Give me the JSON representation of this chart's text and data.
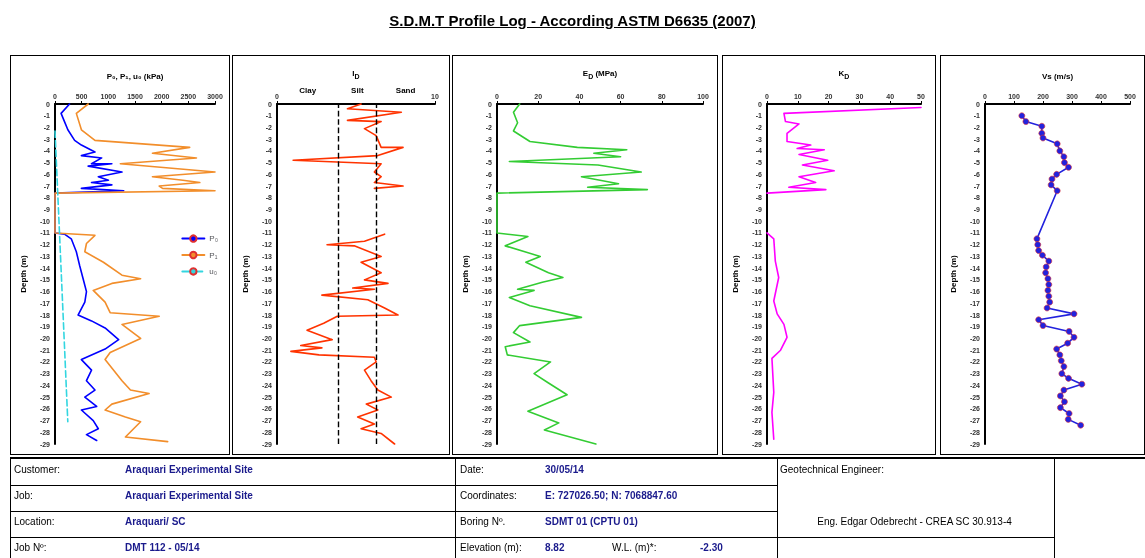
{
  "chart_data": [
    {
      "type": "other",
      "title": "S.D.M.T Profile Log - According ASTM D6635 (2007)",
      "annotations": [
        "Customer:",
        "Araquari Experimental Site",
        "Date:",
        "30/05/14",
        "Geotechnical Engineer:",
        "Job:",
        "Araquari Experimental Site",
        "Coordinates:",
        "E: 727026.50; N: 7068847.60",
        "Location:",
        "Araquari/ SC",
        "Boring Nº.",
        "SDMT 01 (CPTU 01)",
        "Eng. Edgar Odebrecht - CREA SC 30.913-4",
        "Job Nº:",
        "DMT 112 - 05/14",
        "Elevation (m):",
        "8.82",
        "W.L. (m)*:",
        "-2.30"
      ]
    },
    {
      "type": "line",
      "xlabel": "P₀, P₁, u₀ (kPa)",
      "ylabel": "Depth (m)",
      "xlim": [
        0,
        3000
      ],
      "xticks": [
        0,
        500,
        1000,
        1500,
        2000,
        2500,
        3000
      ],
      "ylim": [
        -29,
        0
      ],
      "yticks": [
        0,
        -1,
        -2,
        -3,
        -4,
        -5,
        -6,
        -7,
        -8,
        -9,
        -10,
        -11,
        -12,
        -13,
        -14,
        -15,
        -16,
        -17,
        -18,
        -19,
        -20,
        -21,
        -22,
        -23,
        -24,
        -25,
        -26,
        -27,
        -28,
        -29
      ],
      "grid": false,
      "legend": "right",
      "series": [
        {
          "name": "P₀",
          "color": "#0000ff",
          "x": [
            273,
            114,
            178,
            241,
            368,
            495,
            749,
            495,
            876,
            685,
            1066,
            622,
            1256,
            812,
            1002,
            685,
            1066,
            495,
            1288,
            0,
            0,
            178,
            305,
            400,
            463,
            527,
            590,
            559,
            432,
            685,
            939,
            1193,
            939,
            495,
            685,
            590,
            749,
            559,
            781,
            495,
            717,
            812,
            590,
            781
          ],
          "values": [
            0,
            -0.8,
            -1.5,
            -2.2,
            -3.1,
            -3.5,
            -4.1,
            -4.4,
            -4.6,
            -5.1,
            -5.1,
            -5.3,
            -5.8,
            -6.2,
            -6.5,
            -6.7,
            -6.9,
            -7.2,
            -7.4,
            -7.6,
            -11,
            -11.1,
            -11.5,
            -12.6,
            -13.8,
            -14.9,
            -16,
            -16.9,
            -18,
            -18.5,
            -19.1,
            -20.1,
            -20.9,
            -21.8,
            -22.7,
            -23.6,
            -24.4,
            -25,
            -25.8,
            -26.1,
            -27,
            -27.7,
            -28.2,
            -28.7
          ]
        },
        {
          "name": "P₁",
          "color": "#f28e2b",
          "x": [
            622,
            400,
            495,
            749,
            2525,
            1827,
            2652,
            1225,
            3000,
            1827,
            2398,
            2715,
            1954,
            2017,
            3000,
            0,
            0,
            749,
            590,
            559,
            908,
            1256,
            1605,
            1066,
            717,
            939,
            1034,
            1954,
            1256,
            1605,
            1034,
            939,
            1256,
            1415,
            1764,
            1066,
            939,
            1320,
            1605,
            1320,
            2112
          ],
          "values": [
            0,
            -0.8,
            -2.2,
            -3.1,
            -3.7,
            -4.2,
            -4.6,
            -5.1,
            -5.8,
            -6.2,
            -6.5,
            -6.7,
            -7,
            -7.2,
            -7.4,
            -7.6,
            -11,
            -11.2,
            -11.9,
            -12.6,
            -13.5,
            -14.6,
            -14.9,
            -15.3,
            -15.9,
            -16.9,
            -17.8,
            -18.1,
            -18.8,
            -20,
            -21.2,
            -21.8,
            -23.6,
            -24.4,
            -24.7,
            -25.6,
            -26.1,
            -26.7,
            -27.1,
            -28.4,
            -28.8
          ]
        },
        {
          "name": "u₀",
          "color": "#33d6e0",
          "line_style": "dashed",
          "x": [
            0,
            240
          ],
          "values": [
            -2.3,
            -27.1
          ]
        }
      ]
    },
    {
      "type": "line",
      "xlabel": "I$_{D}$",
      "ylabel": "Depth (m)",
      "log": "x",
      "xlim": [
        0.1,
        10
      ],
      "xticks": [
        {
          "value": 0.1,
          "label": "0"
        },
        10
      ],
      "ylim": [
        -29,
        0
      ],
      "yticks": [
        0,
        -1,
        -2,
        -3,
        -4,
        -5,
        -6,
        -7,
        -8,
        -9,
        -10,
        -11,
        -12,
        -13,
        -14,
        -15,
        -16,
        -17,
        -18,
        -19,
        -20,
        -21,
        -22,
        -23,
        -24,
        -25,
        -26,
        -27,
        -28,
        -29
      ],
      "grid": false,
      "annotations": [
        "Clay",
        "Silt",
        "Sand"
      ],
      "ref_lines": [
        {
          "axis": "x",
          "value": 0.6,
          "color": "#000000",
          "line_style": "dashed"
        },
        {
          "axis": "x",
          "value": 1.8,
          "color": "#000000",
          "line_style": "dashed"
        }
      ],
      "series": [
        {
          "color": "#ff3300",
          "x": [
            1.16,
            0.78,
            3.75,
            0.78,
            2.08,
            1.28,
            1.8,
            2.08,
            3.94,
            1.89,
            0.16,
            2.08,
            1.71,
            2.08,
            1.71,
            3.94,
            1.71,
            null,
            2.3,
            1.28,
            0.43,
            0.95,
            2.08,
            1.16,
            2.08,
            1.28,
            2.54,
            0.91,
            1.71,
            0.37,
            1.41,
            2.3,
            3.4,
            0.58,
            0.39,
            0.24,
            0.5,
            0.2,
            0.37,
            0.15,
            0.34,
            1.71,
            1.8,
            1.28,
            1.55,
            1.89,
            2.8,
            1.35,
            1.89,
            1.05,
            1.71,
            1.16,
            2.08,
            3.08
          ],
          "values": [
            0,
            -0.4,
            -0.7,
            -1.4,
            -1.5,
            -2.1,
            -2.7,
            -3.7,
            -3.7,
            -4.4,
            -4.8,
            -5.1,
            -5.8,
            -6.2,
            -6.7,
            -7,
            -7.2,
            null,
            -11.1,
            -11.7,
            -12,
            -12.1,
            -13,
            -13.5,
            -14.4,
            -15,
            -15.3,
            -15.7,
            -15.8,
            -16.3,
            -16.7,
            -17.4,
            -18,
            -18.1,
            -18.7,
            -19.3,
            -20.1,
            -20.6,
            -20.8,
            -21.1,
            -21.4,
            -21.6,
            -22,
            -22.7,
            -23.6,
            -24.4,
            -25,
            -25.6,
            -26.1,
            -26.7,
            -27.3,
            -27.7,
            -28.1,
            -29
          ]
        }
      ]
    },
    {
      "type": "line",
      "xlabel": "E$_{D}$ (MPa)",
      "ylabel": "Depth (m)",
      "xlim": [
        0,
        100
      ],
      "xticks": [
        0,
        20,
        40,
        60,
        80,
        100
      ],
      "ylim": [
        -29,
        0
      ],
      "yticks": [
        0,
        -1,
        -2,
        -3,
        -4,
        -5,
        -6,
        -7,
        -8,
        -9,
        -10,
        -11,
        -12,
        -13,
        -14,
        -15,
        -16,
        -17,
        -18,
        -19,
        -20,
        -21,
        -22,
        -23,
        -24,
        -25,
        -26,
        -27,
        -28,
        -29
      ],
      "grid": false,
      "series": [
        {
          "color": "#33cc33",
          "x": [
            11,
            8,
            10,
            8,
            16,
            39,
            63,
            47,
            60,
            6,
            49,
            70,
            41,
            59,
            44,
            73,
            0,
            0,
            15,
            4,
            21,
            14,
            25,
            32,
            22,
            10,
            18,
            6,
            16,
            41,
            11,
            8,
            16,
            4,
            5,
            26,
            18,
            25,
            34,
            15,
            30,
            23,
            48
          ],
          "values": [
            0,
            -0.7,
            -1.6,
            -2.3,
            -3.2,
            -3.7,
            -3.9,
            -4.2,
            -4.5,
            -4.9,
            -5.2,
            -5.8,
            -6.2,
            -6.8,
            -7.1,
            -7.3,
            -7.6,
            -11,
            -11.3,
            -12.1,
            -13,
            -13.5,
            -14.4,
            -14.8,
            -15.2,
            -15.8,
            -15.9,
            -16.5,
            -17.2,
            -18.2,
            -18.9,
            -19.5,
            -20.3,
            -20.7,
            -21.4,
            -22,
            -23,
            -23.8,
            -24.8,
            -26.2,
            -27.2,
            -27.8,
            -29
          ]
        }
      ]
    },
    {
      "type": "line",
      "xlabel": "K$_{D}$",
      "ylabel": "Depth (m)",
      "xlim": [
        0,
        50
      ],
      "xticks": [
        0,
        10,
        20,
        30,
        40,
        50
      ],
      "ylim": [
        -29,
        0
      ],
      "yticks": [
        0,
        -1,
        -2,
        -3,
        -4,
        -5,
        -6,
        -7,
        -8,
        -9,
        -10,
        -11,
        -12,
        -13,
        -14,
        -15,
        -16,
        -17,
        -18,
        -19,
        -20,
        -21,
        -22,
        -23,
        -24,
        -25,
        -26,
        -27,
        -28,
        -29
      ],
      "grid": false,
      "series": [
        {
          "color": "#ff00ff",
          "x": [
            50,
            5.5,
            6,
            10.4,
            6.5,
            6.5,
            14.2,
            9.8,
            18.6,
            10.4,
            19.7,
            11.5,
            21.8,
            10.4,
            15.8,
            7.1,
            19.1,
            0,
            null,
            0,
            2.2,
            2.7,
            3.8,
            2.2,
            3.3,
            5.5,
            6.5,
            4.4,
            1.6,
            2.2,
            1.6,
            2.2
          ],
          "values": [
            -0.3,
            -0.8,
            -1.5,
            -1.7,
            -2.5,
            -3.2,
            -3.5,
            -3.8,
            -3.9,
            -4.3,
            -4.8,
            -5.2,
            -5.7,
            -6.2,
            -6.7,
            -7.1,
            -7.3,
            -7.6,
            null,
            -11,
            -11.5,
            -13.4,
            -14.8,
            -16.8,
            -17.9,
            -18.8,
            -19.9,
            -21,
            -21.7,
            -24.6,
            -26.3,
            -28.6
          ]
        }
      ]
    },
    {
      "type": "line",
      "xlabel": "Vs (m/s)",
      "ylabel": "Depth (m)",
      "xlim": [
        0,
        500
      ],
      "xticks": [
        0,
        100,
        200,
        300,
        400,
        500
      ],
      "ylim": [
        -29,
        0
      ],
      "yticks": [
        0,
        -1,
        -2,
        -3,
        -4,
        -5,
        -6,
        -7,
        -8,
        -9,
        -10,
        -11,
        -12,
        -13,
        -14,
        -15,
        -16,
        -17,
        -18,
        -19,
        -20,
        -21,
        -22,
        -23,
        -24,
        -25,
        -26,
        -27,
        -28,
        -29
      ],
      "grid": false,
      "marker": "circle",
      "series": [
        {
          "color": "#2222dd",
          "x": [
            127,
            141,
            196,
            196,
            200,
            249,
            258,
            272,
            274,
            288,
            247,
            231,
            228,
            249,
            179,
            182,
            185,
            198,
            220,
            211,
            209,
            217,
            220,
            217,
            220,
            223,
            214,
            307,
            185,
            200,
            290,
            307,
            285,
            247,
            258,
            263,
            272,
            265,
            288,
            334,
            272,
            260,
            274,
            260,
            290,
            287,
            330
          ],
          "values": [
            -1,
            -1.5,
            -1.9,
            -2.5,
            -2.9,
            -3.4,
            -4,
            -4.5,
            -5,
            -5.4,
            -6,
            -6.4,
            -6.9,
            -7.4,
            -11.5,
            -12,
            -12.5,
            -12.9,
            -13.4,
            -13.9,
            -14.4,
            -14.9,
            -15.4,
            -15.9,
            -16.4,
            -16.9,
            -17.4,
            -17.9,
            -18.4,
            -18.9,
            -19.4,
            -19.9,
            -20.4,
            -20.9,
            -21.4,
            -21.9,
            -22.4,
            -23,
            -23.4,
            -23.9,
            -24.4,
            -24.9,
            -25.4,
            -25.9,
            -26.4,
            -26.9,
            -27.4
          ]
        }
      ]
    }
  ]
}
